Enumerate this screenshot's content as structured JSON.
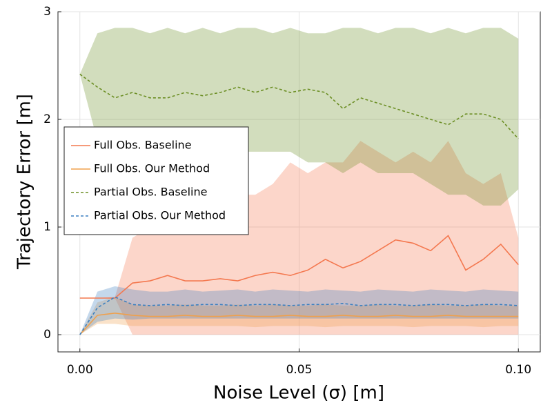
{
  "chart_data": {
    "type": "line",
    "x_label": "Noise Level (σ) [m]",
    "y_label": "Trajectory Error [m]",
    "x": [
      0,
      0.004,
      0.008,
      0.012,
      0.016,
      0.02,
      0.024,
      0.028,
      0.032,
      0.036,
      0.04,
      0.044,
      0.048,
      0.052,
      0.056,
      0.06,
      0.064,
      0.068,
      0.072,
      0.076,
      0.08,
      0.084,
      0.088,
      0.092,
      0.096,
      0.1
    ],
    "xlim": [
      -0.005,
      0.105
    ],
    "ylim": [
      -0.16,
      3
    ],
    "xticks": [
      {
        "value": 0,
        "label": "0.00"
      },
      {
        "value": 0.05,
        "label": "0.05"
      },
      {
        "value": 0.1,
        "label": "0.10"
      }
    ],
    "yticks": [
      0,
      1,
      2,
      3
    ],
    "grid": true,
    "legend": "upper-left",
    "series": [
      {
        "name": "Full Obs. Baseline",
        "color": "#f4784f",
        "dashed": false,
        "values": [
          0.34,
          0.34,
          0.34,
          0.48,
          0.5,
          0.55,
          0.5,
          0.5,
          0.52,
          0.5,
          0.55,
          0.58,
          0.55,
          0.6,
          0.7,
          0.62,
          0.68,
          0.78,
          0.88,
          0.85,
          0.78,
          0.92,
          0.6,
          0.7,
          0.84,
          0.65
        ],
        "lower": [
          0.34,
          0.34,
          0.34,
          0,
          0,
          0,
          0,
          0,
          0,
          0,
          0,
          0,
          0,
          0,
          0,
          0,
          0,
          0,
          0,
          0,
          0,
          0,
          0,
          0,
          0,
          0
        ],
        "upper": [
          0.34,
          0.34,
          0.35,
          0.9,
          1.0,
          1.1,
          1.0,
          1.2,
          1.2,
          1.3,
          1.3,
          1.4,
          1.6,
          1.5,
          1.6,
          1.6,
          1.8,
          1.7,
          1.6,
          1.7,
          1.6,
          1.8,
          1.5,
          1.4,
          1.5,
          0.9
        ]
      },
      {
        "name": "Full Obs. Our Method",
        "color": "#f0a04b",
        "dashed": false,
        "values": [
          0,
          0.18,
          0.2,
          0.18,
          0.17,
          0.17,
          0.18,
          0.17,
          0.17,
          0.18,
          0.17,
          0.17,
          0.18,
          0.17,
          0.17,
          0.18,
          0.17,
          0.17,
          0.18,
          0.17,
          0.17,
          0.18,
          0.17,
          0.17,
          0.17,
          0.17
        ],
        "lower": [
          0,
          0.1,
          0.1,
          0.08,
          0.08,
          0.08,
          0.08,
          0.08,
          0.08,
          0.08,
          0.07,
          0.08,
          0.08,
          0.08,
          0.07,
          0.08,
          0.08,
          0.08,
          0.08,
          0.07,
          0.08,
          0.08,
          0.08,
          0.07,
          0.08,
          0.08
        ],
        "upper": [
          0,
          0.3,
          0.35,
          0.28,
          0.27,
          0.27,
          0.28,
          0.27,
          0.27,
          0.28,
          0.27,
          0.28,
          0.27,
          0.27,
          0.28,
          0.27,
          0.27,
          0.28,
          0.27,
          0.27,
          0.28,
          0.27,
          0.27,
          0.28,
          0.27,
          0.27
        ]
      },
      {
        "name": "Partial Obs. Baseline",
        "color": "#6b8e23",
        "dashed": true,
        "values": [
          2.42,
          2.3,
          2.2,
          2.25,
          2.2,
          2.2,
          2.25,
          2.22,
          2.25,
          2.3,
          2.25,
          2.3,
          2.25,
          2.28,
          2.25,
          2.1,
          2.2,
          2.15,
          2.1,
          2.05,
          2.0,
          1.95,
          2.05,
          2.05,
          2.0,
          1.82
        ],
        "lower": [
          2.42,
          1.8,
          1.75,
          1.7,
          1.7,
          1.7,
          1.7,
          1.7,
          1.7,
          1.7,
          1.7,
          1.7,
          1.7,
          1.6,
          1.6,
          1.5,
          1.6,
          1.5,
          1.5,
          1.5,
          1.4,
          1.3,
          1.3,
          1.2,
          1.2,
          1.35
        ],
        "upper": [
          2.42,
          2.8,
          2.85,
          2.85,
          2.8,
          2.85,
          2.8,
          2.85,
          2.8,
          2.85,
          2.85,
          2.8,
          2.85,
          2.8,
          2.8,
          2.85,
          2.85,
          2.8,
          2.85,
          2.85,
          2.8,
          2.85,
          2.8,
          2.85,
          2.85,
          2.75
        ]
      },
      {
        "name": "Partial Obs. Our Method",
        "color": "#3a7fc0",
        "dashed": true,
        "values": [
          0,
          0.25,
          0.35,
          0.28,
          0.27,
          0.28,
          0.27,
          0.28,
          0.28,
          0.27,
          0.28,
          0.28,
          0.27,
          0.28,
          0.28,
          0.29,
          0.27,
          0.28,
          0.28,
          0.27,
          0.28,
          0.28,
          0.27,
          0.28,
          0.28,
          0.27
        ],
        "lower": [
          0,
          0.12,
          0.15,
          0.14,
          0.15,
          0.15,
          0.15,
          0.15,
          0.15,
          0.15,
          0.15,
          0.15,
          0.15,
          0.15,
          0.15,
          0.15,
          0.15,
          0.15,
          0.15,
          0.15,
          0.15,
          0.15,
          0.15,
          0.15,
          0.15,
          0.15
        ],
        "upper": [
          0,
          0.4,
          0.45,
          0.42,
          0.4,
          0.4,
          0.42,
          0.4,
          0.41,
          0.42,
          0.4,
          0.42,
          0.41,
          0.4,
          0.42,
          0.41,
          0.4,
          0.42,
          0.41,
          0.4,
          0.42,
          0.41,
          0.4,
          0.42,
          0.41,
          0.4
        ]
      }
    ]
  }
}
